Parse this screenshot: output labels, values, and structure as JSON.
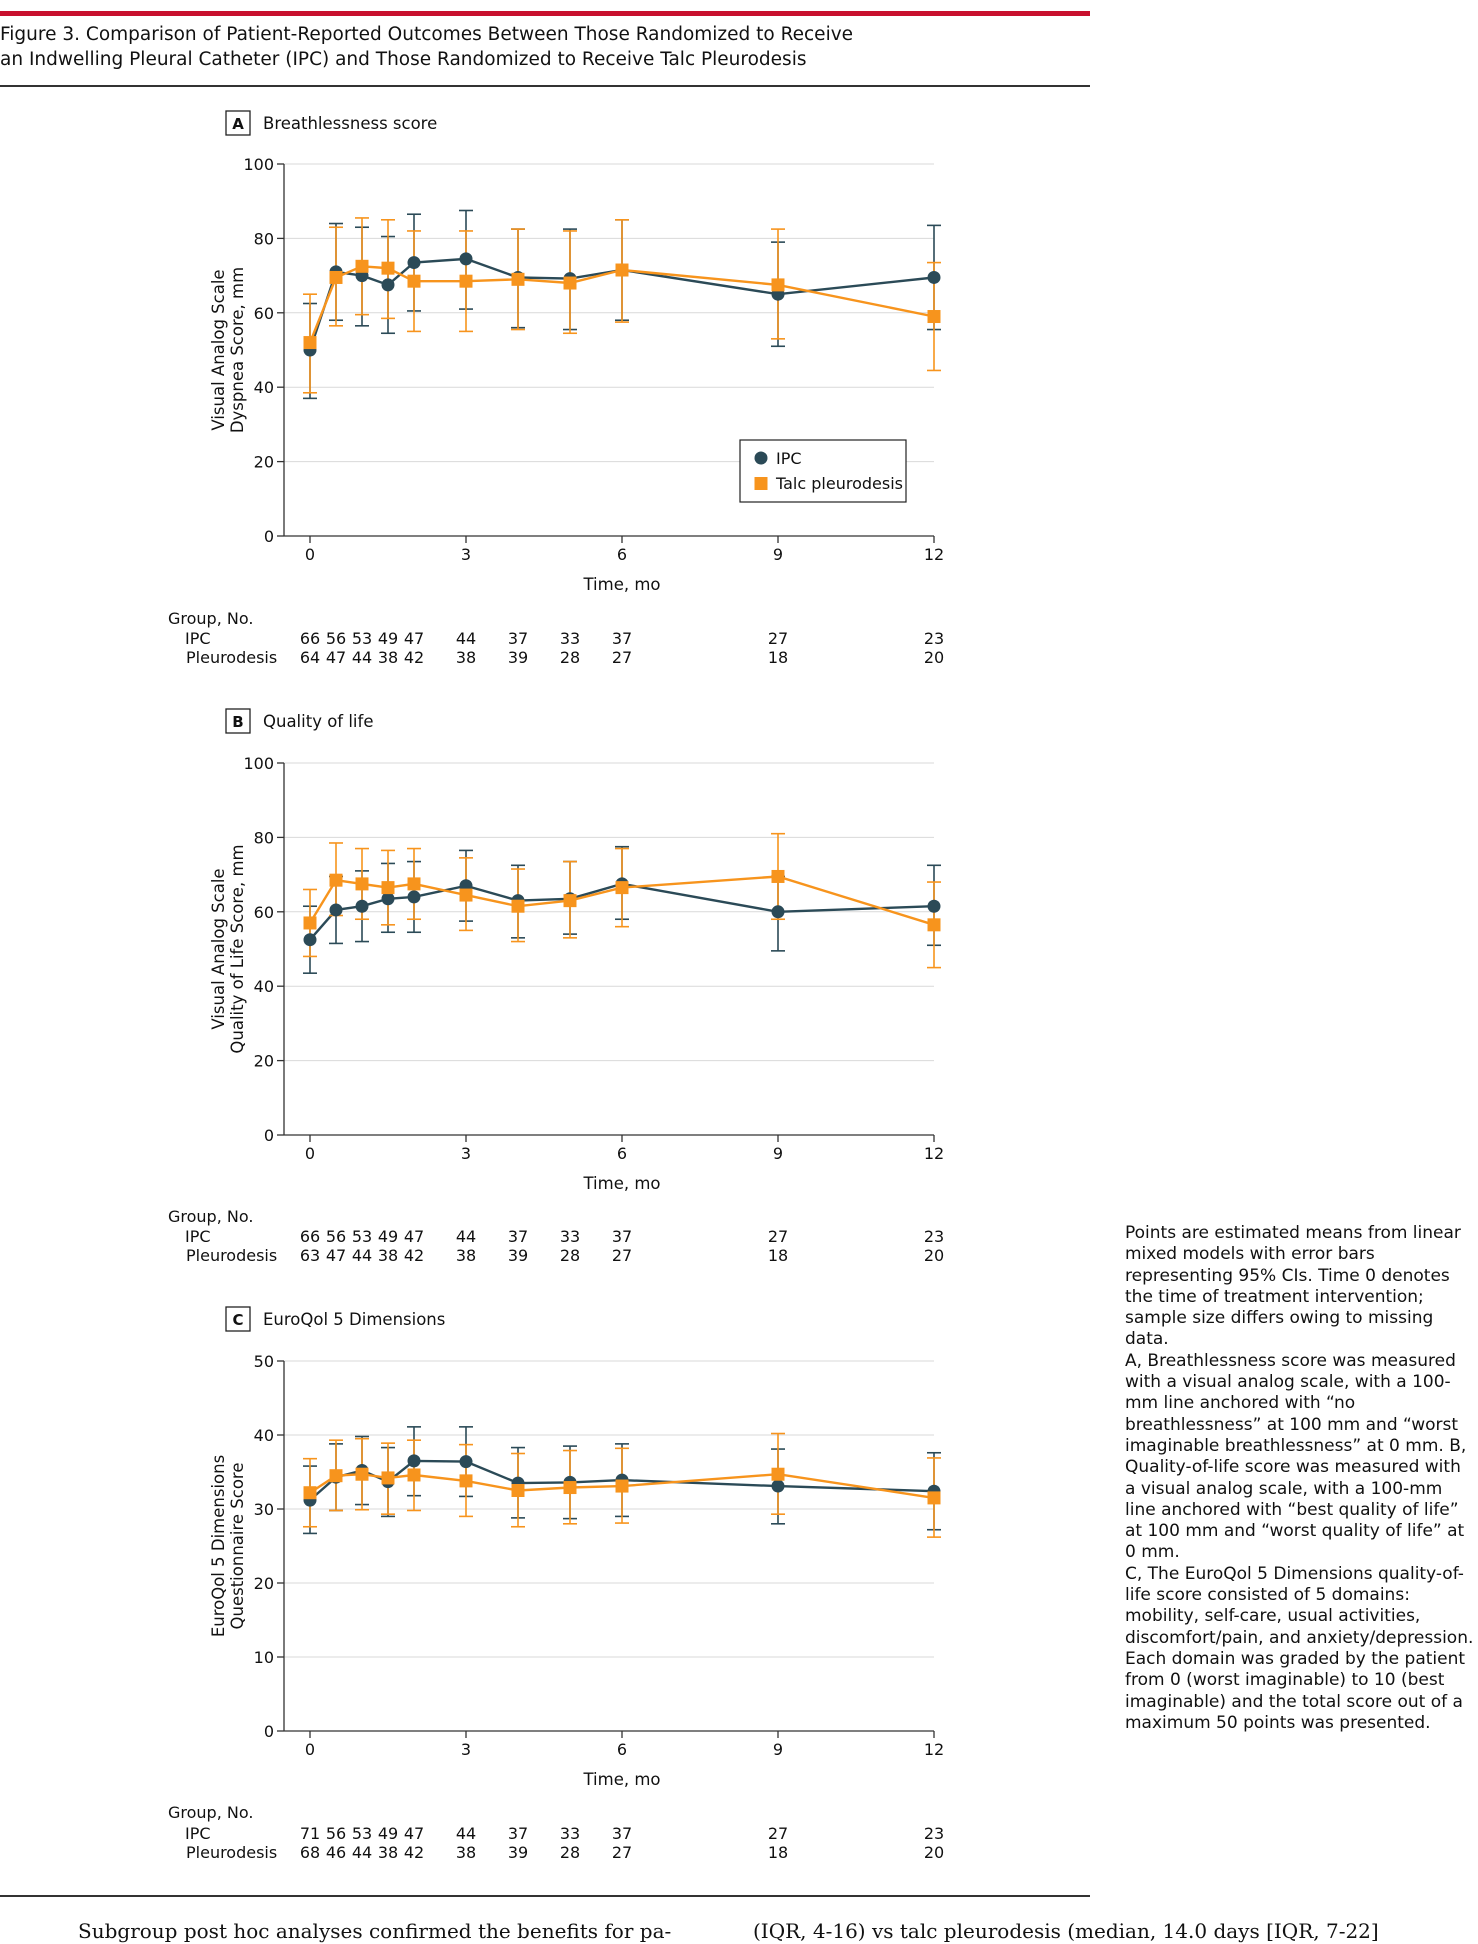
{
  "figure": {
    "title_line1": "Figure 3. Comparison of Patient-Reported Outcomes Between Those Randomized to Receive",
    "title_line2": "an Indwelling Pleural Catheter (IPC) and Those Randomized to Receive Talc Pleurodesis"
  },
  "caption": {
    "p1": "Points are estimated means from linear mixed models with error bars representing 95% CIs. Time 0 denotes the time of treatment intervention; sample size differs owing to missing data.",
    "p2": "A, Breathlessness score was measured with a visual analog scale, with a 100-mm line anchored with “no breathlessness” at 100 mm and “worst imaginable breathlessness” at 0 mm. B, Quality-of-life score was measured with a visual analog scale, with a 100-mm line anchored with “best quality of life” at 100 mm and “worst quality of life” at 0 mm.",
    "p3": "C, The EuroQol 5 Dimensions quality-of-life score consisted of 5 domains: mobility, self-care, usual activities, discomfort/pain, and anxiety/depression. Each domain was graded by the patient from 0 (worst imaginable) to 10 (best imaginable) and the total score out of a maximum 50 points was presented."
  },
  "body_text": {
    "left": "Subgroup post hoc analyses confirmed the benefits for pa-",
    "right": "(IQR, 4-16) vs talc pleurodesis (median, 14.0 days [IQR, 7-22]"
  },
  "colors": {
    "ipc": "#2b4a57",
    "talc": "#f7941d",
    "grid": "#d9d9d9",
    "axis": "#333333"
  },
  "chart_data": [
    {
      "type": "line",
      "panel_letter": "A",
      "title": "Breathlessness score",
      "ylabel": [
        "Visual Analog Scale",
        "Dyspnea Score, mm"
      ],
      "xlabel": "Time, mo",
      "ylim": [
        0,
        100
      ],
      "yticks": [
        0,
        20,
        40,
        60,
        80,
        100
      ],
      "xlim": [
        0,
        12
      ],
      "xticks": [
        0,
        3,
        6,
        9,
        12
      ],
      "grid": true,
      "legend": {
        "placement": "bottom-right",
        "entries": [
          "IPC",
          "Talc pleurodesis"
        ]
      },
      "x": [
        0,
        0.5,
        1,
        1.5,
        2,
        3,
        4,
        5,
        6,
        9,
        12
      ],
      "series": [
        {
          "name": "IPC",
          "marker": "circle",
          "values": [
            50,
            71,
            70,
            67.5,
            73.5,
            74.5,
            69.5,
            69.2,
            71.5,
            65,
            69.5
          ],
          "ci_low": [
            37,
            58,
            56.5,
            54.5,
            60.5,
            61,
            56,
            55.5,
            58,
            51,
            55.5
          ],
          "ci_high": [
            62.5,
            84,
            83,
            80.5,
            86.5,
            87.5,
            82.5,
            82.5,
            85,
            79,
            83.5
          ]
        },
        {
          "name": "Talc pleurodesis",
          "marker": "square",
          "values": [
            52,
            69.5,
            72.5,
            72,
            68.5,
            68.5,
            69,
            68,
            71.5,
            67.5,
            59
          ],
          "ci_low": [
            38.5,
            56.5,
            59.5,
            58.5,
            55,
            55,
            55.5,
            54.5,
            57.5,
            53,
            44.5
          ],
          "ci_high": [
            65,
            83,
            85.5,
            85,
            82,
            82,
            82.5,
            82,
            85,
            82.5,
            73.5
          ]
        }
      ],
      "risk_table": {
        "header": "Group, No.",
        "rows": [
          {
            "label": "IPC",
            "values": [
              "66",
              "56",
              "53",
              "49",
              "47",
              "44",
              "37",
              "33",
              "37",
              "27",
              "23"
            ]
          },
          {
            "label": "Pleurodesis",
            "values": [
              "64",
              "47",
              "44",
              "38",
              "42",
              "38",
              "39",
              "28",
              "27",
              "18",
              "20"
            ]
          }
        ]
      }
    },
    {
      "type": "line",
      "panel_letter": "B",
      "title": "Quality of life",
      "ylabel": [
        "Visual Analog Scale",
        "Quality of Life Score, mm"
      ],
      "xlabel": "Time, mo",
      "ylim": [
        0,
        100
      ],
      "yticks": [
        0,
        20,
        40,
        60,
        80,
        100
      ],
      "xlim": [
        0,
        12
      ],
      "xticks": [
        0,
        3,
        6,
        9,
        12
      ],
      "grid": true,
      "x": [
        0,
        0.5,
        1,
        1.5,
        2,
        3,
        4,
        5,
        6,
        9,
        12
      ],
      "series": [
        {
          "name": "IPC",
          "marker": "circle",
          "values": [
            52.5,
            60.5,
            61.5,
            63.5,
            64,
            67,
            63,
            63.5,
            67.5,
            60,
            61.5
          ],
          "ci_low": [
            43.5,
            51.5,
            52,
            54.5,
            54.5,
            57.5,
            53,
            54,
            58,
            49.5,
            51
          ],
          "ci_high": [
            61.5,
            69.5,
            71,
            73,
            73.5,
            76.5,
            72.5,
            73.5,
            77.5,
            69.5,
            72.5
          ]
        },
        {
          "name": "Talc pleurodesis",
          "marker": "square",
          "values": [
            57,
            68.5,
            67.5,
            66.5,
            67.5,
            64.5,
            61.5,
            63,
            66.5,
            69.5,
            56.5
          ],
          "ci_low": [
            48,
            59,
            58,
            56.5,
            58,
            55,
            52,
            53,
            56,
            58,
            45
          ],
          "ci_high": [
            66,
            78.5,
            77,
            76.5,
            77,
            74.5,
            71.5,
            73.5,
            77,
            81,
            68
          ]
        }
      ],
      "risk_table": {
        "header": "Group, No.",
        "rows": [
          {
            "label": "IPC",
            "values": [
              "66",
              "56",
              "53",
              "49",
              "47",
              "44",
              "37",
              "33",
              "37",
              "27",
              "23"
            ]
          },
          {
            "label": "Pleurodesis",
            "values": [
              "63",
              "47",
              "44",
              "38",
              "42",
              "38",
              "39",
              "28",
              "27",
              "18",
              "20"
            ]
          }
        ]
      }
    },
    {
      "type": "line",
      "panel_letter": "C",
      "title": "EuroQol 5 Dimensions",
      "ylabel": [
        "EuroQol 5 Dimensions",
        "Questionnaire Score"
      ],
      "xlabel": "Time, mo",
      "ylim": [
        0,
        50
      ],
      "yticks": [
        0,
        10,
        20,
        30,
        40,
        50
      ],
      "xlim": [
        0,
        12
      ],
      "xticks": [
        0,
        3,
        6,
        9,
        12
      ],
      "grid": true,
      "x": [
        0,
        0.5,
        1,
        1.5,
        2,
        3,
        4,
        5,
        6,
        9,
        12
      ],
      "series": [
        {
          "name": "IPC",
          "marker": "circle",
          "values": [
            31.2,
            34.3,
            35.2,
            33.7,
            36.5,
            36.4,
            33.5,
            33.6,
            33.9,
            33.1,
            32.4
          ],
          "ci_low": [
            26.7,
            29.8,
            30.6,
            29,
            31.8,
            31.7,
            28.8,
            28.7,
            29,
            28,
            27.2
          ],
          "ci_high": [
            35.8,
            38.8,
            39.8,
            38.3,
            41.1,
            41.1,
            38.3,
            38.5,
            38.8,
            38.1,
            37.6
          ]
        },
        {
          "name": "Talc pleurodesis",
          "marker": "square",
          "values": [
            32.2,
            34.5,
            34.7,
            34.2,
            34.6,
            33.8,
            32.5,
            32.9,
            33.1,
            34.7,
            31.5
          ],
          "ci_low": [
            27.6,
            29.8,
            29.9,
            29.3,
            29.8,
            29,
            27.6,
            28,
            28.1,
            29.3,
            26.2
          ],
          "ci_high": [
            36.8,
            39.3,
            39.5,
            38.9,
            39.3,
            38.7,
            37.5,
            37.9,
            38.2,
            40.2,
            36.9
          ]
        }
      ],
      "risk_table": {
        "header": "Group, No.",
        "rows": [
          {
            "label": "IPC",
            "values": [
              "71",
              "56",
              "53",
              "49",
              "47",
              "44",
              "37",
              "33",
              "37",
              "27",
              "23"
            ]
          },
          {
            "label": "Pleurodesis",
            "values": [
              "68",
              "46",
              "44",
              "38",
              "42",
              "38",
              "39",
              "28",
              "27",
              "18",
              "20"
            ]
          }
        ]
      }
    }
  ]
}
